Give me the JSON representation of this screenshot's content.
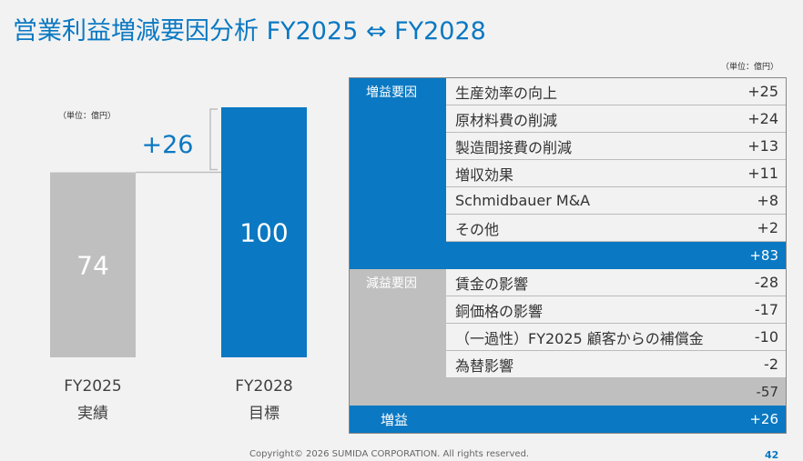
{
  "title": "営業利益増減要因分析 FY2025 ⇔ FY2028",
  "unit_label": "（単位：億円）",
  "table_unit_label": "（単位：億円）",
  "chart_data": {
    "type": "bar",
    "categories": [
      "FY2025",
      "FY2028"
    ],
    "category_sublabels": [
      "実績",
      "目標"
    ],
    "values": [
      74,
      100
    ],
    "colors": [
      "#bfbfbf",
      "#0a78c2"
    ],
    "difference_label": "+26",
    "ylim": [
      0,
      100
    ]
  },
  "table": {
    "increase": {
      "label": "増益要因",
      "items": [
        {
          "name": "生産効率の向上",
          "value": "+25"
        },
        {
          "name": "原材料費の削減",
          "value": "+24"
        },
        {
          "name": "製造間接費の削減",
          "value": "+13"
        },
        {
          "name": "増収効果",
          "value": "+11"
        },
        {
          "name": "Schmidbauer M&A",
          "value": "+8"
        },
        {
          "name": "その他",
          "value": "+2"
        }
      ],
      "total": "+83"
    },
    "decrease": {
      "label": "減益要因",
      "items": [
        {
          "name": "賃金の影響",
          "value": "-28"
        },
        {
          "name": "銅価格の影響",
          "value": "-17"
        },
        {
          "name": "（一過性）FY2025 顧客からの補償金",
          "value": "-10"
        },
        {
          "name": "為替影響",
          "value": "-2"
        }
      ],
      "total": "-57"
    },
    "net": {
      "label": "増益",
      "value": "+26"
    }
  },
  "footer": {
    "copyright": "Copyright© 2026 SUMIDA CORPORATION. All rights reserved.",
    "page": "42"
  }
}
